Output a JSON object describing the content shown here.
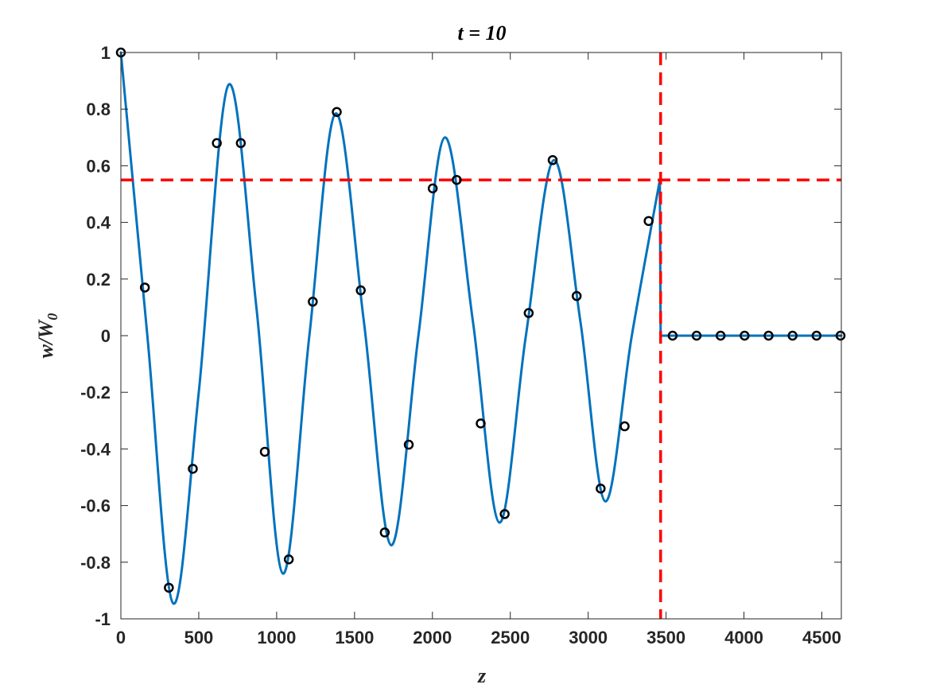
{
  "chart_data": {
    "type": "line",
    "title": "t = 10",
    "xlabel": "z",
    "ylabel_main": "w/W",
    "ylabel_sub": "0",
    "xlim": [
      0,
      4625
    ],
    "ylim": [
      -1,
      1
    ],
    "x_ticks": [
      0,
      500,
      1000,
      1500,
      2000,
      2500,
      3000,
      3500,
      4000,
      4500
    ],
    "x_tick_labels": [
      "0",
      "500",
      "1000",
      "1500",
      "2000",
      "2500",
      "3000",
      "3500",
      "4000",
      "4500"
    ],
    "y_ticks": [
      1,
      0.8,
      0.6,
      0.4,
      0.2,
      0,
      -0.2,
      -0.4,
      -0.6,
      -0.8,
      -1
    ],
    "y_tick_labels": [
      "1",
      "0.8",
      "0.6",
      "0.4",
      "0.2",
      "0",
      "-0.2",
      "-0.4",
      "-0.6",
      "-0.8",
      "-1"
    ],
    "grid": false,
    "colors": {
      "curve": "#0072BD",
      "reference": "#FF0000",
      "markers": "#000000",
      "axes": "#262626"
    },
    "series": [
      {
        "type": "line",
        "x": [
          0,
          170,
          335,
          500,
          690,
          870,
          1040,
          1210,
          1380,
          1560,
          1735,
          1910,
          2080,
          2260,
          2430,
          2600,
          2780,
          2950,
          3110,
          3280,
          3460,
          3465,
          3500,
          4625
        ],
        "y": [
          1.0,
          0.0,
          -0.945,
          -0.2,
          0.885,
          0.1,
          -0.84,
          0.0,
          0.785,
          0.05,
          -0.74,
          0.0,
          0.7,
          0.05,
          -0.66,
          0.0,
          0.62,
          0.05,
          -0.585,
          0.0,
          0.55,
          0.0,
          0.0,
          0.0
        ]
      },
      {
        "type": "scatter",
        "x": [
          0,
          154,
          308,
          462,
          616,
          770,
          924,
          1078,
          1232,
          1386,
          1540,
          1694,
          1848,
          2002,
          2156,
          2310,
          2464,
          2618,
          2772,
          2926,
          3080,
          3234,
          3388,
          3542,
          3696,
          3850,
          4004,
          4158,
          4312,
          4466,
          4620
        ],
        "y": [
          1.0,
          0.17,
          -0.89,
          -0.47,
          0.68,
          0.68,
          -0.41,
          -0.79,
          0.12,
          0.79,
          0.16,
          -0.695,
          -0.385,
          0.52,
          0.55,
          -0.31,
          -0.63,
          0.08,
          0.62,
          0.14,
          -0.54,
          -0.32,
          0.405,
          0,
          0,
          0,
          0,
          0,
          0,
          0,
          0
        ]
      }
    ],
    "reference_lines": {
      "horizontal_y": 0.55,
      "vertical_x": 3465
    }
  }
}
